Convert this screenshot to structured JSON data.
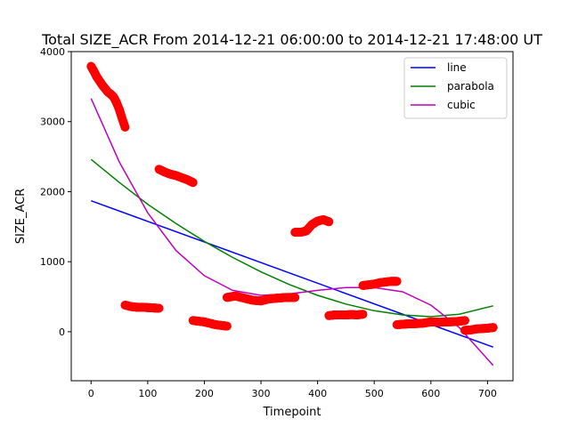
{
  "chart_data": {
    "type": "scatter",
    "title": "Total SIZE_ACR From 2014-12-21 06:00:00 to 2014-12-21 17:48:00 UT",
    "xlabel": "Timepoint",
    "ylabel": "SIZE_ACR",
    "xlim": [
      -35,
      745
    ],
    "ylim": [
      -700,
      4000
    ],
    "x_ticks": [
      "0",
      "100",
      "200",
      "300",
      "400",
      "500",
      "600",
      "700"
    ],
    "y_ticks": [
      "0",
      "1000",
      "2000",
      "3000",
      "4000"
    ],
    "grid": false,
    "legend_position": "top-right",
    "legend": [
      "line",
      "parabola",
      "cubic"
    ],
    "scatter_color": "#ff0000",
    "observations": {
      "segments": [
        {
          "x0": 0,
          "x1": 60,
          "points": [
            [
              0,
              3790
            ],
            [
              5,
              3720
            ],
            [
              10,
              3640
            ],
            [
              15,
              3580
            ],
            [
              20,
              3520
            ],
            [
              25,
              3470
            ],
            [
              30,
              3420
            ],
            [
              35,
              3390
            ],
            [
              40,
              3350
            ],
            [
              45,
              3270
            ],
            [
              50,
              3170
            ],
            [
              55,
              3040
            ],
            [
              60,
              2920
            ]
          ]
        },
        {
          "x0": 60,
          "x1": 120,
          "points": [
            [
              60,
              380
            ],
            [
              70,
              360
            ],
            [
              80,
              350
            ],
            [
              90,
              350
            ],
            [
              100,
              345
            ],
            [
              110,
              340
            ],
            [
              120,
              335
            ]
          ]
        },
        {
          "x0": 120,
          "x1": 180,
          "points": [
            [
              120,
              2320
            ],
            [
              130,
              2280
            ],
            [
              140,
              2250
            ],
            [
              150,
              2230
            ],
            [
              160,
              2200
            ],
            [
              170,
              2170
            ],
            [
              180,
              2130
            ]
          ]
        },
        {
          "x0": 180,
          "x1": 240,
          "points": [
            [
              180,
              160
            ],
            [
              190,
              150
            ],
            [
              200,
              140
            ],
            [
              210,
              120
            ],
            [
              220,
              100
            ],
            [
              230,
              90
            ],
            [
              240,
              80
            ]
          ]
        },
        {
          "x0": 240,
          "x1": 360,
          "points": [
            [
              240,
              490
            ],
            [
              255,
              510
            ],
            [
              270,
              480
            ],
            [
              285,
              450
            ],
            [
              300,
              440
            ],
            [
              315,
              470
            ],
            [
              330,
              480
            ],
            [
              345,
              490
            ],
            [
              360,
              490
            ]
          ]
        },
        {
          "x0": 360,
          "x1": 420,
          "points": [
            [
              360,
              1420
            ],
            [
              370,
              1420
            ],
            [
              380,
              1440
            ],
            [
              390,
              1530
            ],
            [
              400,
              1580
            ],
            [
              410,
              1600
            ],
            [
              420,
              1570
            ]
          ]
        },
        {
          "x0": 420,
          "x1": 480,
          "points": [
            [
              420,
              230
            ],
            [
              430,
              240
            ],
            [
              440,
              240
            ],
            [
              450,
              240
            ],
            [
              460,
              245
            ],
            [
              470,
              240
            ],
            [
              480,
              250
            ]
          ]
        },
        {
          "x0": 480,
          "x1": 540,
          "points": [
            [
              480,
              660
            ],
            [
              490,
              670
            ],
            [
              500,
              680
            ],
            [
              510,
              700
            ],
            [
              520,
              710
            ],
            [
              530,
              720
            ],
            [
              540,
              720
            ]
          ]
        },
        {
          "x0": 540,
          "x1": 660,
          "points": [
            [
              540,
              100
            ],
            [
              555,
              110
            ],
            [
              570,
              115
            ],
            [
              585,
              120
            ],
            [
              600,
              140
            ],
            [
              615,
              135
            ],
            [
              630,
              140
            ],
            [
              645,
              145
            ],
            [
              660,
              160
            ]
          ]
        },
        {
          "x0": 660,
          "x1": 710,
          "points": [
            [
              660,
              20
            ],
            [
              670,
              25
            ],
            [
              680,
              40
            ],
            [
              690,
              45
            ],
            [
              700,
              50
            ],
            [
              710,
              60
            ]
          ]
        }
      ]
    },
    "series": [
      {
        "name": "line",
        "color": "#0000ff",
        "x": [
          0,
          710
        ],
        "y": [
          1870,
          -220
        ]
      },
      {
        "name": "parabola",
        "color": "#008000",
        "x": [
          0,
          50,
          100,
          150,
          200,
          250,
          300,
          350,
          400,
          450,
          500,
          550,
          600,
          650,
          710
        ],
        "y": [
          2460,
          2130,
          1820,
          1545,
          1290,
          1060,
          855,
          675,
          520,
          395,
          300,
          240,
          215,
          250,
          370
        ]
      },
      {
        "name": "cubic",
        "color": "#bf00bf",
        "x": [
          0,
          50,
          100,
          150,
          200,
          250,
          300,
          350,
          400,
          450,
          500,
          550,
          600,
          650,
          710
        ],
        "y": [
          3330,
          2420,
          1700,
          1160,
          800,
          590,
          520,
          540,
          590,
          630,
          630,
          570,
          380,
          60,
          -480
        ]
      }
    ]
  }
}
